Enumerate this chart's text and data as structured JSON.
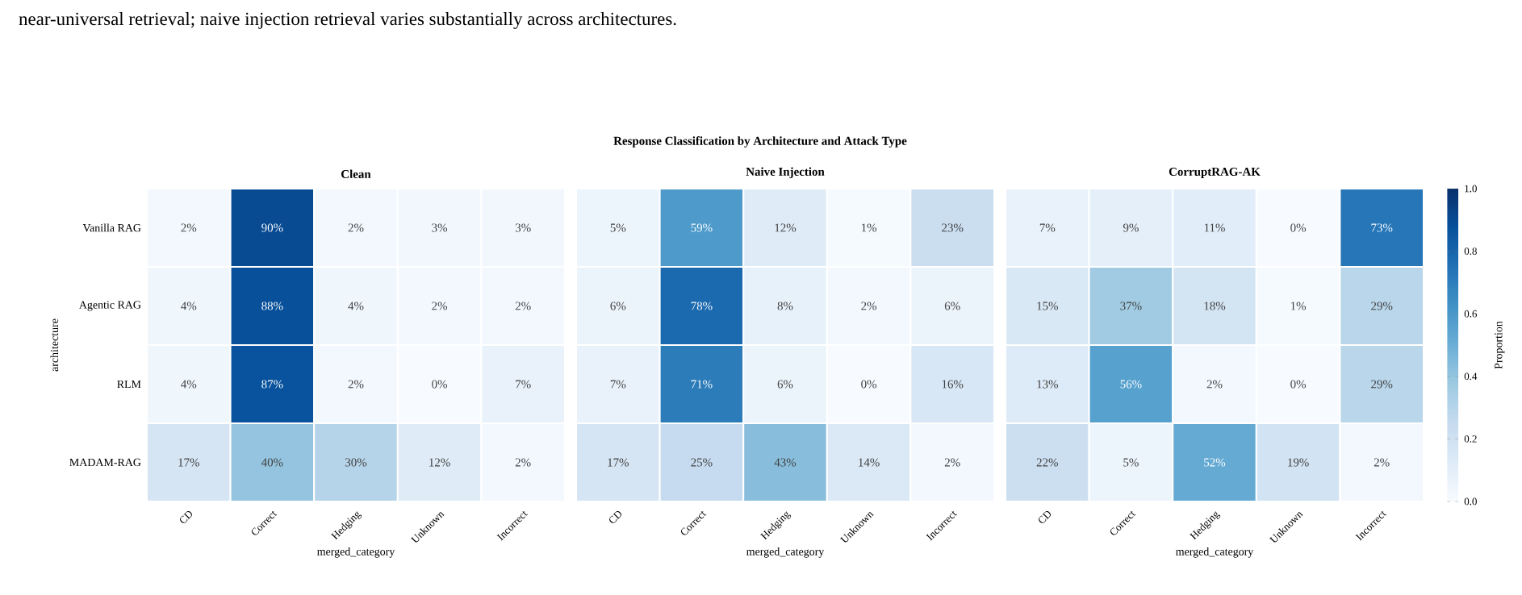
{
  "chart_data": [
    {
      "type": "heatmap",
      "title": "Clean",
      "xlabel": "merged_category",
      "ylabel": "architecture",
      "annotations": [
        "near-universal retrieval; naive injection retrieval varies substantially across architectures.",
        "Response Classification by Architecture and Attack Type"
      ],
      "categories": [
        "CD",
        "Correct",
        "Hedging",
        "Unknown",
        "Incorrect"
      ],
      "y_categories": [
        "Vanilla RAG",
        "Agentic RAG",
        "RLM",
        "MADAM-RAG"
      ],
      "cells": [
        [
          0.02,
          0.9,
          0.02,
          0.03,
          0.03
        ],
        [
          0.04,
          0.88,
          0.04,
          0.02,
          0.02
        ],
        [
          0.04,
          0.87,
          0.02,
          0.0,
          0.07
        ],
        [
          0.17,
          0.4,
          0.3,
          0.12,
          0.02
        ]
      ],
      "cell_labels": [
        [
          "2%",
          "90%",
          "2%",
          "3%",
          "3%"
        ],
        [
          "4%",
          "88%",
          "4%",
          "2%",
          "2%"
        ],
        [
          "4%",
          "87%",
          "2%",
          "0%",
          "7%"
        ],
        [
          "17%",
          "40%",
          "30%",
          "12%",
          "2%"
        ]
      ]
    },
    {
      "type": "heatmap",
      "title": "Naive Injection",
      "xlabel": "merged_category",
      "tick_labels": "x",
      "categories": [
        "CD",
        "Correct",
        "Hedging",
        "Unknown",
        "Incorrect"
      ],
      "y_categories": [
        null,
        null,
        null,
        null
      ],
      "cells": [
        [
          0.05,
          0.59,
          0.12,
          0.01,
          0.23
        ],
        [
          0.06,
          0.78,
          0.08,
          0.02,
          0.06
        ],
        [
          0.07,
          0.71,
          0.06,
          0.0,
          0.16
        ],
        [
          0.17,
          0.25,
          0.43,
          0.14,
          0.02
        ]
      ],
      "cell_labels": [
        [
          "5%",
          "59%",
          "12%",
          "1%",
          "23%"
        ],
        [
          "6%",
          "78%",
          "8%",
          "2%",
          "6%"
        ],
        [
          "7%",
          "71%",
          "6%",
          "0%",
          "16%"
        ],
        [
          "17%",
          "25%",
          "43%",
          "14%",
          "2%"
        ]
      ]
    },
    {
      "type": "heatmap",
      "title": "CorruptRAG-AK",
      "xlabel": "merged_category",
      "tick_labels": "x",
      "clabel": "Proportion",
      "clim": [
        0,
        1
      ],
      "cticks": [
        {
          "value": 0,
          "label": "0.0"
        },
        0.2,
        0.4,
        0.6,
        0.8,
        {
          "value": 1,
          "label": "1.0"
        }
      ],
      "categories": [
        "CD",
        "Correct",
        "Hedging",
        "Unknown",
        "Incorrect"
      ],
      "y_categories": [
        null,
        null,
        null,
        null
      ],
      "cells": [
        [
          0.07,
          0.09,
          0.11,
          0.0,
          0.73
        ],
        [
          0.15,
          0.37,
          0.18,
          0.01,
          0.29
        ],
        [
          0.13,
          0.56,
          0.02,
          0.0,
          0.29
        ],
        [
          0.22,
          0.05,
          0.52,
          0.19,
          0.02
        ]
      ],
      "cell_labels": [
        [
          "7%",
          "9%",
          "11%",
          "0%",
          "73%"
        ],
        [
          "15%",
          "37%",
          "18%",
          "1%",
          "29%"
        ],
        [
          "13%",
          "56%",
          "2%",
          "0%",
          "29%"
        ],
        [
          "22%",
          "5%",
          "52%",
          "19%",
          "2%"
        ]
      ]
    }
  ]
}
